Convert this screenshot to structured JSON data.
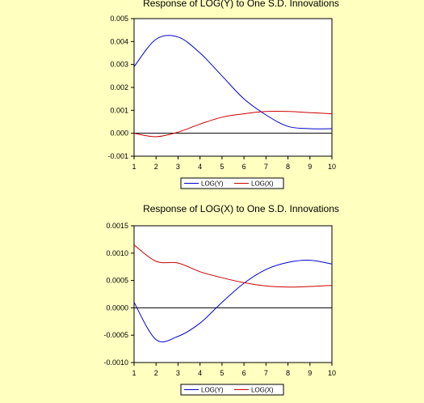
{
  "colors": {
    "background": "#ffffc0",
    "plot_background": "#ffffff",
    "series_y": "#0000cc",
    "series_x": "#cc0000",
    "zero_line": "#000000"
  },
  "chart_data": [
    {
      "type": "line",
      "title": "Response of LOG(Y) to One S.D. Innovations",
      "xlabel": "",
      "ylabel": "",
      "x": [
        1,
        2,
        3,
        4,
        5,
        6,
        7,
        8,
        9,
        10
      ],
      "xticks": [
        "1",
        "2",
        "3",
        "4",
        "5",
        "6",
        "7",
        "8",
        "9",
        "10"
      ],
      "ylim": [
        -0.001,
        0.005
      ],
      "yticks": [
        "-0.001",
        "0.000",
        "0.001",
        "0.002",
        "0.003",
        "0.004",
        "0.005"
      ],
      "zero_line": true,
      "grid": false,
      "legend_position": "bottom",
      "series": [
        {
          "name": "LOG(Y)",
          "color": "#0000cc",
          "values": [
            0.0029,
            0.0041,
            0.0042,
            0.0035,
            0.0025,
            0.0015,
            0.0008,
            0.0003,
            0.0002,
            0.0002
          ]
        },
        {
          "name": "LOG(X)",
          "color": "#cc0000",
          "values": [
            0.0,
            -0.00015,
            5e-05,
            0.0004,
            0.0007,
            0.00085,
            0.00095,
            0.00095,
            0.0009,
            0.00085
          ]
        }
      ]
    },
    {
      "type": "line",
      "title": "Response of LOG(X) to One S.D. Innovations",
      "xlabel": "",
      "ylabel": "",
      "x": [
        1,
        2,
        3,
        4,
        5,
        6,
        7,
        8,
        9,
        10
      ],
      "xticks": [
        "1",
        "2",
        "3",
        "4",
        "5",
        "6",
        "7",
        "8",
        "9",
        "10"
      ],
      "ylim": [
        -0.001,
        0.0015
      ],
      "yticks": [
        "-0.0010",
        "-0.0005",
        "0.0000",
        "0.0005",
        "0.0010",
        "0.0015"
      ],
      "zero_line": true,
      "grid": false,
      "legend_position": "bottom",
      "series": [
        {
          "name": "LOG(Y)",
          "color": "#0000cc",
          "values": [
            0.0001,
            -0.00058,
            -0.00052,
            -0.00028,
            0.0001,
            0.00045,
            0.0007,
            0.00083,
            0.00087,
            0.0008
          ]
        },
        {
          "name": "LOG(X)",
          "color": "#cc0000",
          "values": [
            0.00115,
            0.00085,
            0.00082,
            0.00066,
            0.00055,
            0.00046,
            0.0004,
            0.00038,
            0.00039,
            0.00041
          ]
        }
      ]
    }
  ]
}
